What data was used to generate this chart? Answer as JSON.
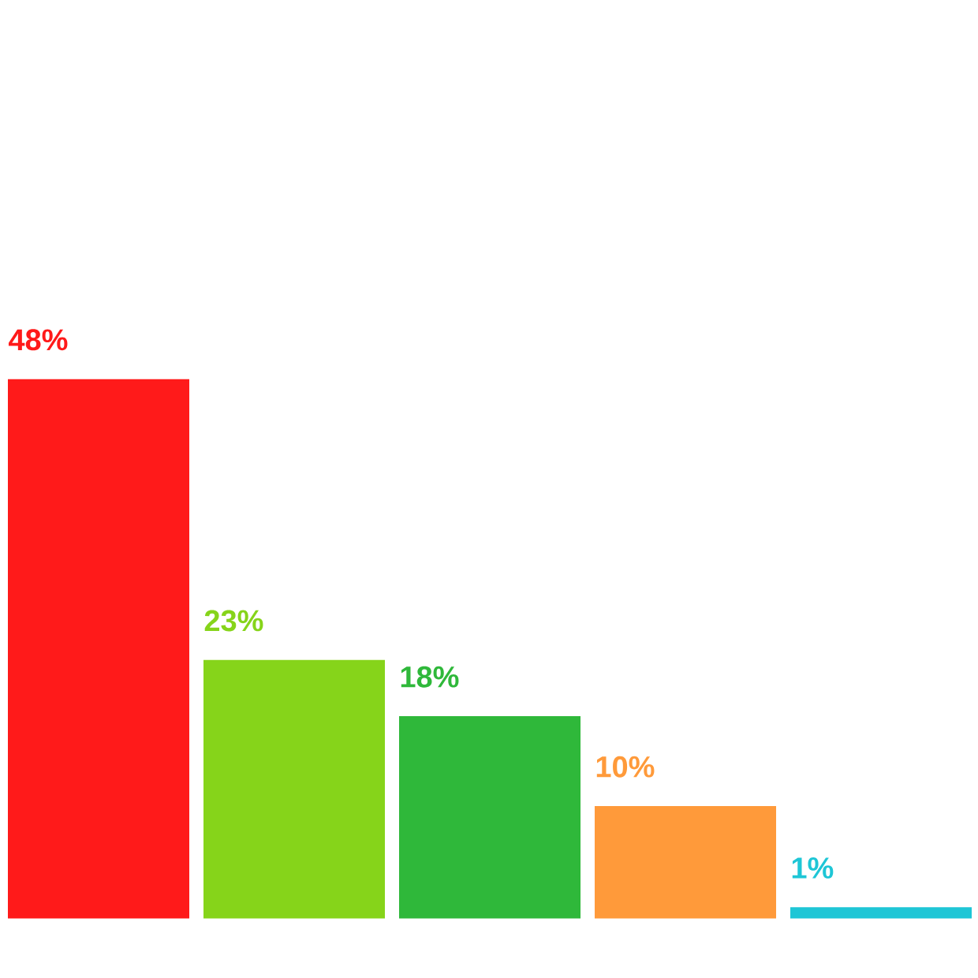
{
  "chart_data": {
    "type": "bar",
    "categories": [
      null,
      null,
      null,
      null,
      null
    ],
    "values": [
      48,
      23,
      18,
      10,
      1
    ],
    "colors": [
      "#ff1a1a",
      "#86d41a",
      "#2fb83a",
      "#ff9a3a",
      "#1ec6d6"
    ],
    "value_labels": [
      "48%",
      "23%",
      "18%",
      "10%",
      "1%"
    ]
  }
}
